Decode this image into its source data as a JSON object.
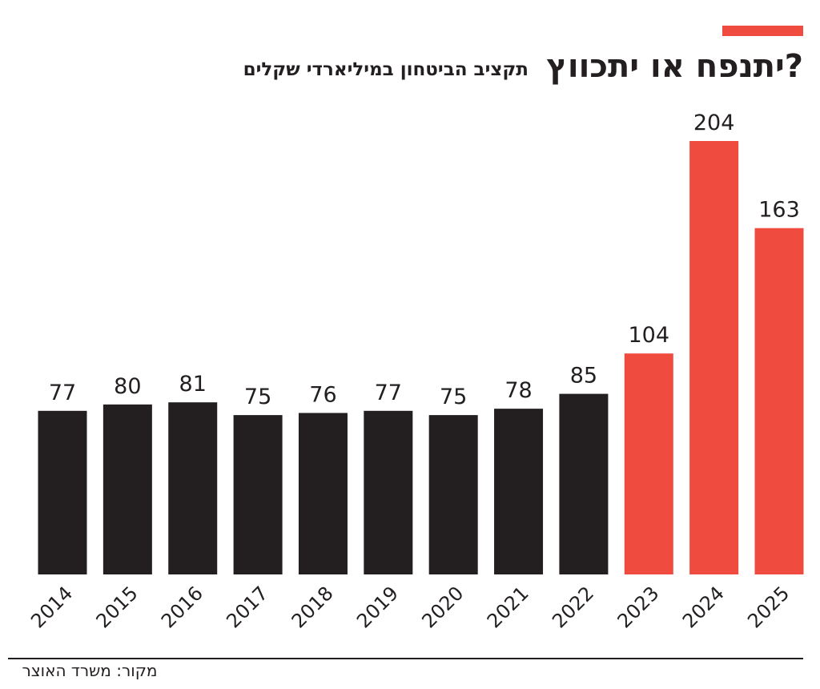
{
  "chart_data": {
    "type": "bar",
    "title": "יתנפח או יתכווץ?",
    "subtitle": "תקציב הביטחון במיליארדי שקלים",
    "source": "מקור: משרד האוצר",
    "categories": [
      "2014",
      "2015",
      "2016",
      "2017",
      "2018",
      "2019",
      "2020",
      "2021",
      "2022",
      "2023",
      "2024",
      "2025"
    ],
    "values": [
      77,
      80,
      81,
      75,
      76,
      77,
      75,
      78,
      85,
      104,
      204,
      163
    ],
    "colors": [
      "#231f20",
      "#231f20",
      "#231f20",
      "#231f20",
      "#231f20",
      "#231f20",
      "#231f20",
      "#231f20",
      "#231f20",
      "#ef4b3f",
      "#ef4b3f",
      "#ef4b3f"
    ]
  }
}
